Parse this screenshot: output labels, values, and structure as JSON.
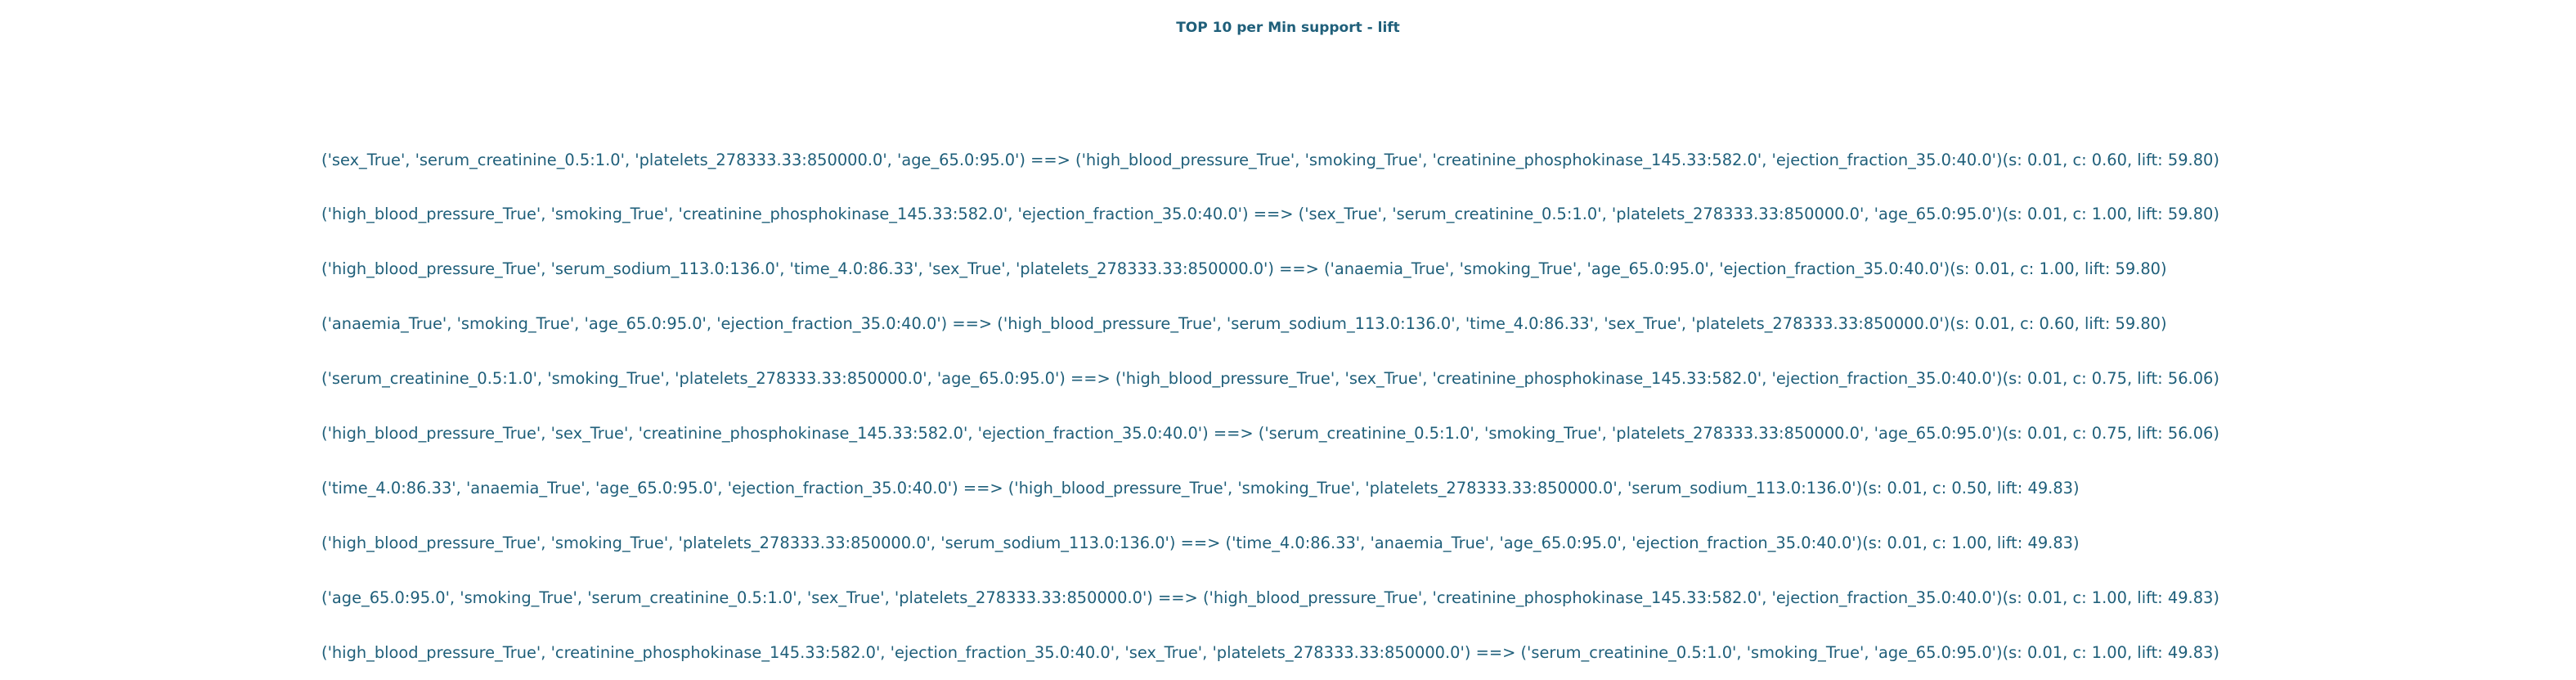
{
  "title": "TOP 10 per Min support - lift",
  "rules": [
    "('sex_True', 'serum_creatinine_0.5:1.0', 'platelets_278333.33:850000.0', 'age_65.0:95.0') ==> ('high_blood_pressure_True', 'smoking_True', 'creatinine_phosphokinase_145.33:582.0', 'ejection_fraction_35.0:40.0')(s: 0.01, c: 0.60, lift: 59.80)",
    "('high_blood_pressure_True', 'smoking_True', 'creatinine_phosphokinase_145.33:582.0', 'ejection_fraction_35.0:40.0') ==> ('sex_True', 'serum_creatinine_0.5:1.0', 'platelets_278333.33:850000.0', 'age_65.0:95.0')(s: 0.01, c: 1.00, lift: 59.80)",
    "('high_blood_pressure_True', 'serum_sodium_113.0:136.0', 'time_4.0:86.33', 'sex_True', 'platelets_278333.33:850000.0') ==> ('anaemia_True', 'smoking_True', 'age_65.0:95.0', 'ejection_fraction_35.0:40.0')(s: 0.01, c: 1.00, lift: 59.80)",
    "('anaemia_True', 'smoking_True', 'age_65.0:95.0', 'ejection_fraction_35.0:40.0') ==> ('high_blood_pressure_True', 'serum_sodium_113.0:136.0', 'time_4.0:86.33', 'sex_True', 'platelets_278333.33:850000.0')(s: 0.01, c: 0.60, lift: 59.80)",
    "('serum_creatinine_0.5:1.0', 'smoking_True', 'platelets_278333.33:850000.0', 'age_65.0:95.0') ==> ('high_blood_pressure_True', 'sex_True', 'creatinine_phosphokinase_145.33:582.0', 'ejection_fraction_35.0:40.0')(s: 0.01, c: 0.75, lift: 56.06)",
    "('high_blood_pressure_True', 'sex_True', 'creatinine_phosphokinase_145.33:582.0', 'ejection_fraction_35.0:40.0') ==> ('serum_creatinine_0.5:1.0', 'smoking_True', 'platelets_278333.33:850000.0', 'age_65.0:95.0')(s: 0.01, c: 0.75, lift: 56.06)",
    "('time_4.0:86.33', 'anaemia_True', 'age_65.0:95.0', 'ejection_fraction_35.0:40.0') ==> ('high_blood_pressure_True', 'smoking_True', 'platelets_278333.33:850000.0', 'serum_sodium_113.0:136.0')(s: 0.01, c: 0.50, lift: 49.83)",
    "('high_blood_pressure_True', 'smoking_True', 'platelets_278333.33:850000.0', 'serum_sodium_113.0:136.0') ==> ('time_4.0:86.33', 'anaemia_True', 'age_65.0:95.0', 'ejection_fraction_35.0:40.0')(s: 0.01, c: 1.00, lift: 49.83)",
    "('age_65.0:95.0', 'smoking_True', 'serum_creatinine_0.5:1.0', 'sex_True', 'platelets_278333.33:850000.0') ==> ('high_blood_pressure_True', 'creatinine_phosphokinase_145.33:582.0', 'ejection_fraction_35.0:40.0')(s: 0.01, c: 1.00, lift: 49.83)",
    "('high_blood_pressure_True', 'creatinine_phosphokinase_145.33:582.0', 'ejection_fraction_35.0:40.0', 'sex_True', 'platelets_278333.33:850000.0') ==> ('serum_creatinine_0.5:1.0', 'smoking_True', 'age_65.0:95.0')(s: 0.01, c: 1.00, lift: 49.83)"
  ],
  "colors": {
    "text": "#1f5f7a",
    "background": "#ffffff"
  }
}
